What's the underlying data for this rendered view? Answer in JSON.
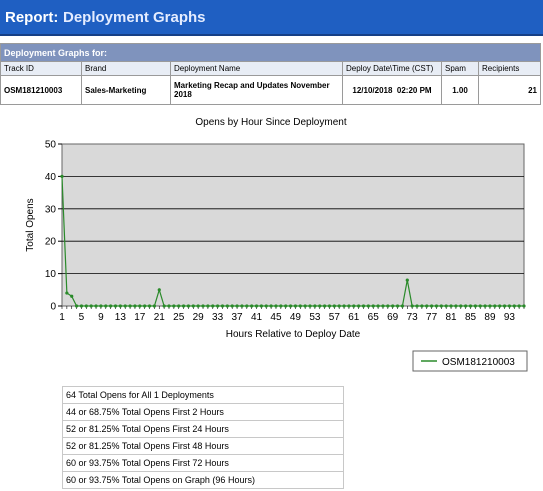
{
  "header": {
    "report_label": "Report:",
    "title": "Deployment Graphs"
  },
  "deployment": {
    "section_title": "Deployment Graphs for:",
    "columns": [
      "Track ID",
      "Brand",
      "Deployment Name",
      "Deploy Date\\Time (CST)",
      "Spam",
      "Recipients"
    ],
    "row": {
      "track_id": "OSM181210003",
      "brand": "Sales-Marketing",
      "name": "Marketing Recap and Updates November 2018",
      "date": "12/10/2018",
      "time": "02:20 PM",
      "spam": "1.00",
      "recipients": "21"
    }
  },
  "chart_data": {
    "type": "line",
    "title": "Opens by Hour Since Deployment",
    "xlabel": "Hours Relative to Deploy Date",
    "ylabel": "Total Opens",
    "ylim": [
      0,
      50
    ],
    "yticks": [
      0,
      10,
      20,
      30,
      40,
      50
    ],
    "xlim": [
      1,
      96
    ],
    "xticks": [
      1,
      5,
      9,
      13,
      17,
      21,
      25,
      29,
      33,
      37,
      41,
      45,
      49,
      53,
      57,
      61,
      65,
      69,
      73,
      77,
      81,
      85,
      89,
      93
    ],
    "grid": true,
    "legend_position": "bottom-right",
    "series": [
      {
        "name": "OSM181210003",
        "color": "#2a8a2a",
        "x": [
          1,
          2,
          3,
          4,
          5,
          6,
          7,
          8,
          9,
          10,
          11,
          12,
          13,
          14,
          15,
          16,
          17,
          18,
          19,
          20,
          21,
          22,
          23,
          24,
          25,
          26,
          27,
          28,
          29,
          30,
          31,
          32,
          33,
          34,
          35,
          36,
          37,
          38,
          39,
          40,
          41,
          42,
          43,
          44,
          45,
          46,
          47,
          48,
          49,
          50,
          51,
          52,
          53,
          54,
          55,
          56,
          57,
          58,
          59,
          60,
          61,
          62,
          63,
          64,
          65,
          66,
          67,
          68,
          69,
          70,
          71,
          72,
          73,
          74,
          75,
          76,
          77,
          78,
          79,
          80,
          81,
          82,
          83,
          84,
          85,
          86,
          87,
          88,
          89,
          90,
          91,
          92,
          93,
          94,
          95,
          96
        ],
        "y": [
          40,
          4,
          3,
          0,
          0,
          0,
          0,
          0,
          0,
          0,
          0,
          0,
          0,
          0,
          0,
          0,
          0,
          0,
          0,
          0,
          5,
          0,
          0,
          0,
          0,
          0,
          0,
          0,
          0,
          0,
          0,
          0,
          0,
          0,
          0,
          0,
          0,
          0,
          0,
          0,
          0,
          0,
          0,
          0,
          0,
          0,
          0,
          0,
          0,
          0,
          0,
          0,
          0,
          0,
          0,
          0,
          0,
          0,
          0,
          0,
          0,
          0,
          0,
          0,
          0,
          0,
          0,
          0,
          0,
          0,
          0,
          8,
          0,
          0,
          0,
          0,
          0,
          0,
          0,
          0,
          0,
          0,
          0,
          0,
          0,
          0,
          0,
          0,
          0,
          0,
          0,
          0,
          0,
          0,
          0,
          0
        ]
      }
    ]
  },
  "stats": [
    "64 Total Opens for All 1 Deployments",
    "44 or 68.75% Total Opens First 2 Hours",
    "52 or 81.25% Total Opens First 24 Hours",
    "52 or 81.25% Total Opens First 48 Hours",
    "60 or 93.75% Total Opens First 72 Hours",
    "60 or 93.75% Total Opens on Graph (96 Hours)"
  ]
}
